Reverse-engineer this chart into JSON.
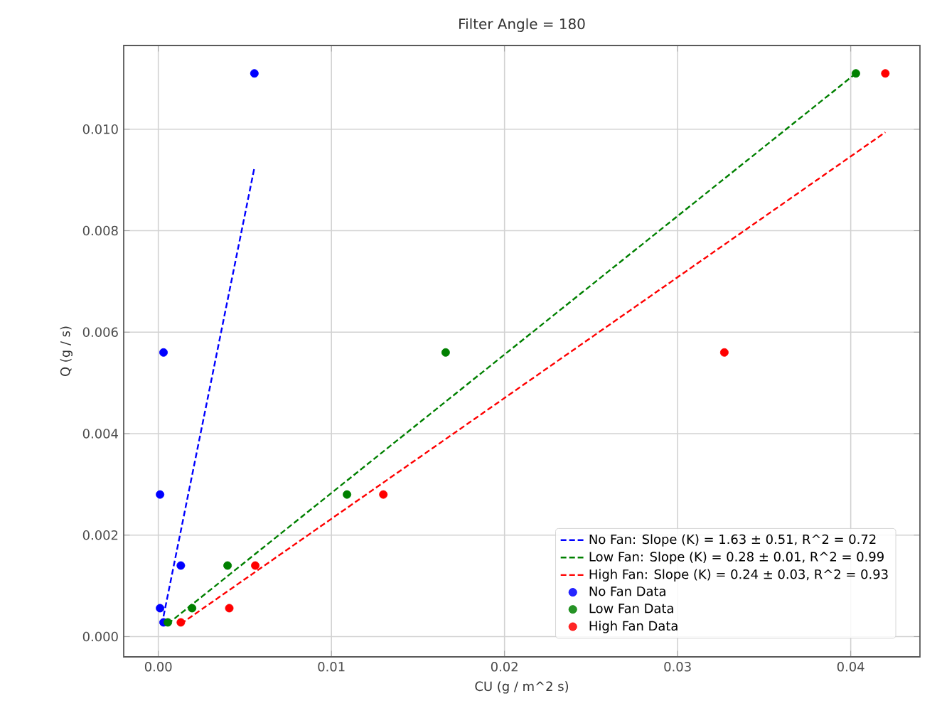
{
  "chart_data": {
    "type": "scatter",
    "title": "Filter Angle = 180",
    "xlabel": "CU (g / m^2 s)",
    "ylabel": "Q (g / s)",
    "xlim": [
      -0.002,
      0.044
    ],
    "ylim": [
      -0.0004,
      0.01165
    ],
    "xticks": [
      {
        "value": 0,
        "label": "0.00"
      },
      {
        "value": 0.01,
        "label": "0.01"
      },
      {
        "value": 0.02,
        "label": "0.02"
      },
      {
        "value": 0.03,
        "label": "0.03"
      },
      {
        "value": 0.04,
        "label": "0.04"
      }
    ],
    "yticks": [
      {
        "value": 0,
        "label": "0.000"
      },
      {
        "value": 0.002,
        "label": "0.002"
      },
      {
        "value": 0.004,
        "label": "0.004"
      },
      {
        "value": 0.006,
        "label": "0.006"
      },
      {
        "value": 0.008,
        "label": "0.008"
      },
      {
        "value": 0.01,
        "label": "0.010"
      }
    ],
    "grid": true,
    "legend": "bottom right",
    "series": [
      {
        "type": "line",
        "line_style": "dashed",
        "name": "No Fan: Slope (K) = 1.63 ± 0.51, R^2 = 0.72",
        "color": "#0000ff",
        "x": [
          0.0003,
          0.00555
        ],
        "values": [
          0.0004,
          0.00924
        ]
      },
      {
        "type": "line",
        "line_style": "dashed",
        "name": "Low Fan: Slope (K) = 0.28 ± 0.01, R^2 = 0.99",
        "color": "#008000",
        "x": [
          0.00055,
          0.0403
        ],
        "values": [
          0.00025,
          0.0111
        ]
      },
      {
        "type": "line",
        "line_style": "dashed",
        "name": "High Fan: Slope (K) = 0.24 ± 0.03, R^2 = 0.93",
        "color": "#ff0000",
        "x": [
          0.0013,
          0.042
        ],
        "values": [
          0.00025,
          0.00994
        ]
      },
      {
        "marker": "circle",
        "name": "No Fan Data",
        "color": "#0000ff",
        "x": [
          0.0003,
          0.0001,
          0.0013,
          0.0001,
          0.0003,
          0.00555
        ],
        "values": [
          0.00028,
          0.00056,
          0.0014,
          0.0028,
          0.0056,
          0.0111
        ]
      },
      {
        "marker": "circle",
        "name": "Low Fan Data",
        "color": "#008000",
        "x": [
          0.00055,
          0.00195,
          0.004,
          0.0109,
          0.0166,
          0.0403
        ],
        "values": [
          0.00028,
          0.00056,
          0.0014,
          0.0028,
          0.0056,
          0.0111
        ]
      },
      {
        "marker": "circle",
        "name": "High Fan Data",
        "color": "#ff0000",
        "x": [
          0.0013,
          0.0041,
          0.0056,
          0.013,
          0.0327,
          0.042
        ],
        "values": [
          0.00028,
          0.00056,
          0.0014,
          0.0028,
          0.0056,
          0.0111
        ]
      }
    ]
  }
}
